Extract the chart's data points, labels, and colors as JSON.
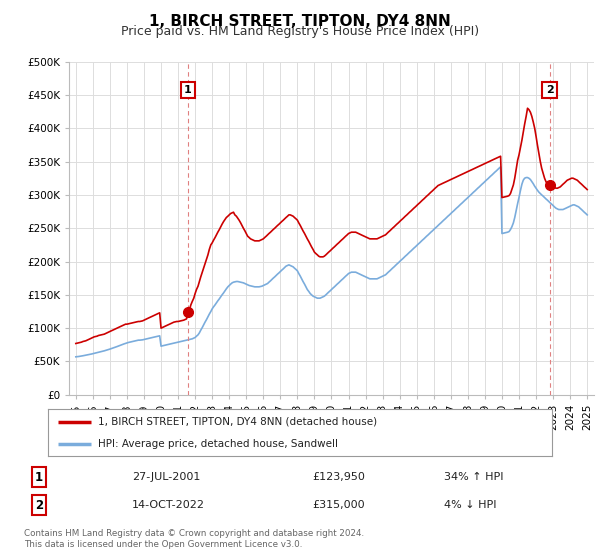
{
  "title": "1, BIRCH STREET, TIPTON, DY4 8NN",
  "subtitle": "Price paid vs. HM Land Registry's House Price Index (HPI)",
  "ylabel_ticks": [
    "£0",
    "£50K",
    "£100K",
    "£150K",
    "£200K",
    "£250K",
    "£300K",
    "£350K",
    "£400K",
    "£450K",
    "£500K"
  ],
  "ytick_values": [
    0,
    50000,
    100000,
    150000,
    200000,
    250000,
    300000,
    350000,
    400000,
    450000,
    500000
  ],
  "ylim": [
    0,
    500000
  ],
  "xlim_start": 1994.6,
  "xlim_end": 2025.4,
  "sale1_x": 2001.57,
  "sale1_y": 123950,
  "sale1_label": "1",
  "sale2_x": 2022.79,
  "sale2_y": 315000,
  "sale2_label": "2",
  "red_color": "#cc0000",
  "blue_color": "#7aacdc",
  "dashed_color": "#e08080",
  "marker_box_color": "#cc0000",
  "legend_line1": "1, BIRCH STREET, TIPTON, DY4 8NN (detached house)",
  "legend_line2": "HPI: Average price, detached house, Sandwell",
  "table_row1": [
    "1",
    "27-JUL-2001",
    "£123,950",
    "34% ↑ HPI"
  ],
  "table_row2": [
    "2",
    "14-OCT-2022",
    "£315,000",
    "4% ↓ HPI"
  ],
  "footer": "Contains HM Land Registry data © Crown copyright and database right 2024.\nThis data is licensed under the Open Government Licence v3.0.",
  "background_color": "#ffffff",
  "grid_color": "#dddddd",
  "title_fontsize": 11,
  "subtitle_fontsize": 9,
  "tick_fontsize": 7.5,
  "hpi_red_data_x": [
    1995.0,
    1995.08,
    1995.17,
    1995.25,
    1995.33,
    1995.42,
    1995.5,
    1995.58,
    1995.67,
    1995.75,
    1995.83,
    1995.92,
    1996.0,
    1996.08,
    1996.17,
    1996.25,
    1996.33,
    1996.42,
    1996.5,
    1996.58,
    1996.67,
    1996.75,
    1996.83,
    1996.92,
    1997.0,
    1997.08,
    1997.17,
    1997.25,
    1997.33,
    1997.42,
    1997.5,
    1997.58,
    1997.67,
    1997.75,
    1997.83,
    1997.92,
    1998.0,
    1998.08,
    1998.17,
    1998.25,
    1998.33,
    1998.42,
    1998.5,
    1998.58,
    1998.67,
    1998.75,
    1998.83,
    1998.92,
    1999.0,
    1999.08,
    1999.17,
    1999.25,
    1999.33,
    1999.42,
    1999.5,
    1999.58,
    1999.67,
    1999.75,
    1999.83,
    1999.92,
    2000.0,
    2000.08,
    2000.17,
    2000.25,
    2000.33,
    2000.42,
    2000.5,
    2000.58,
    2000.67,
    2000.75,
    2000.83,
    2000.92,
    2001.0,
    2001.08,
    2001.17,
    2001.25,
    2001.33,
    2001.42,
    2001.5,
    2001.57,
    2001.67,
    2001.75,
    2001.83,
    2001.92,
    2002.0,
    2002.08,
    2002.17,
    2002.25,
    2002.33,
    2002.42,
    2002.5,
    2002.58,
    2002.67,
    2002.75,
    2002.83,
    2002.92,
    2003.0,
    2003.08,
    2003.17,
    2003.25,
    2003.33,
    2003.42,
    2003.5,
    2003.58,
    2003.67,
    2003.75,
    2003.83,
    2003.92,
    2004.0,
    2004.08,
    2004.17,
    2004.25,
    2004.33,
    2004.42,
    2004.5,
    2004.58,
    2004.67,
    2004.75,
    2004.83,
    2004.92,
    2005.0,
    2005.08,
    2005.17,
    2005.25,
    2005.33,
    2005.42,
    2005.5,
    2005.58,
    2005.67,
    2005.75,
    2005.83,
    2005.92,
    2006.0,
    2006.08,
    2006.17,
    2006.25,
    2006.33,
    2006.42,
    2006.5,
    2006.58,
    2006.67,
    2006.75,
    2006.83,
    2006.92,
    2007.0,
    2007.08,
    2007.17,
    2007.25,
    2007.33,
    2007.42,
    2007.5,
    2007.58,
    2007.67,
    2007.75,
    2007.83,
    2007.92,
    2008.0,
    2008.08,
    2008.17,
    2008.25,
    2008.33,
    2008.42,
    2008.5,
    2008.58,
    2008.67,
    2008.75,
    2008.83,
    2008.92,
    2009.0,
    2009.08,
    2009.17,
    2009.25,
    2009.33,
    2009.42,
    2009.5,
    2009.58,
    2009.67,
    2009.75,
    2009.83,
    2009.92,
    2010.0,
    2010.08,
    2010.17,
    2010.25,
    2010.33,
    2010.42,
    2010.5,
    2010.58,
    2010.67,
    2010.75,
    2010.83,
    2010.92,
    2011.0,
    2011.08,
    2011.17,
    2011.25,
    2011.33,
    2011.42,
    2011.5,
    2011.58,
    2011.67,
    2011.75,
    2011.83,
    2011.92,
    2012.0,
    2012.08,
    2012.17,
    2012.25,
    2012.33,
    2012.42,
    2012.5,
    2012.58,
    2012.67,
    2012.75,
    2012.83,
    2012.92,
    2013.0,
    2013.08,
    2013.17,
    2013.25,
    2013.33,
    2013.42,
    2013.5,
    2013.58,
    2013.67,
    2013.75,
    2013.83,
    2013.92,
    2014.0,
    2014.08,
    2014.17,
    2014.25,
    2014.33,
    2014.42,
    2014.5,
    2014.58,
    2014.67,
    2014.75,
    2014.83,
    2014.92,
    2015.0,
    2015.08,
    2015.17,
    2015.25,
    2015.33,
    2015.42,
    2015.5,
    2015.58,
    2015.67,
    2015.75,
    2015.83,
    2015.92,
    2016.0,
    2016.08,
    2016.17,
    2016.25,
    2016.33,
    2016.42,
    2016.5,
    2016.58,
    2016.67,
    2016.75,
    2016.83,
    2016.92,
    2017.0,
    2017.08,
    2017.17,
    2017.25,
    2017.33,
    2017.42,
    2017.5,
    2017.58,
    2017.67,
    2017.75,
    2017.83,
    2017.92,
    2018.0,
    2018.08,
    2018.17,
    2018.25,
    2018.33,
    2018.42,
    2018.5,
    2018.58,
    2018.67,
    2018.75,
    2018.83,
    2018.92,
    2019.0,
    2019.08,
    2019.17,
    2019.25,
    2019.33,
    2019.42,
    2019.5,
    2019.58,
    2019.67,
    2019.75,
    2019.83,
    2019.92,
    2020.0,
    2020.08,
    2020.17,
    2020.25,
    2020.33,
    2020.42,
    2020.5,
    2020.58,
    2020.67,
    2020.75,
    2020.83,
    2020.92,
    2021.0,
    2021.08,
    2021.17,
    2021.25,
    2021.33,
    2021.42,
    2021.5,
    2021.58,
    2021.67,
    2021.75,
    2021.83,
    2021.92,
    2022.0,
    2022.08,
    2022.17,
    2022.25,
    2022.33,
    2022.42,
    2022.5,
    2022.58,
    2022.67,
    2022.79,
    2022.83,
    2022.92,
    2023.0,
    2023.08,
    2023.17,
    2023.25,
    2023.33,
    2023.42,
    2023.5,
    2023.58,
    2023.67,
    2023.75,
    2023.83,
    2023.92,
    2024.0,
    2024.08,
    2024.17,
    2024.25,
    2024.33,
    2024.42,
    2024.5,
    2024.58,
    2024.67,
    2024.75,
    2024.83,
    2024.92,
    2025.0
  ],
  "hpi_red_data_y": [
    77000,
    77500,
    78000,
    78500,
    79000,
    80000,
    80500,
    81000,
    82000,
    83000,
    84000,
    85000,
    86000,
    87000,
    87500,
    88000,
    89000,
    89500,
    90000,
    90500,
    91000,
    92000,
    93000,
    94000,
    95000,
    96000,
    97000,
    98000,
    99000,
    100000,
    101000,
    102000,
    103000,
    104000,
    105000,
    106000,
    106000,
    106500,
    107000,
    107500,
    108000,
    108500,
    109000,
    109500,
    110000,
    110000,
    110500,
    111000,
    112000,
    113000,
    114000,
    115000,
    116000,
    117000,
    118000,
    119000,
    120000,
    121000,
    122000,
    123000,
    100000,
    101000,
    102000,
    103000,
    104000,
    105000,
    106000,
    107000,
    108000,
    109000,
    109500,
    110000,
    110000,
    110500,
    111000,
    111500,
    112000,
    113000,
    114000,
    123950,
    128000,
    135000,
    140000,
    145000,
    152000,
    158000,
    163000,
    170000,
    177000,
    184000,
    190000,
    196000,
    203000,
    210000,
    218000,
    225000,
    228000,
    232000,
    236000,
    240000,
    244000,
    248000,
    252000,
    256000,
    260000,
    263000,
    266000,
    268000,
    270000,
    272000,
    273000,
    274000,
    270000,
    268000,
    265000,
    262000,
    258000,
    254000,
    250000,
    246000,
    242000,
    238000,
    236000,
    234000,
    233000,
    232000,
    231000,
    231000,
    231000,
    231000,
    232000,
    233000,
    234000,
    236000,
    238000,
    240000,
    242000,
    244000,
    246000,
    248000,
    250000,
    252000,
    254000,
    256000,
    258000,
    260000,
    262000,
    264000,
    266000,
    268000,
    270000,
    270000,
    269000,
    268000,
    266000,
    264000,
    262000,
    258000,
    254000,
    250000,
    246000,
    242000,
    238000,
    234000,
    230000,
    226000,
    222000,
    218000,
    214000,
    212000,
    210000,
    208000,
    207000,
    207000,
    207000,
    208000,
    210000,
    212000,
    214000,
    216000,
    218000,
    220000,
    222000,
    224000,
    226000,
    228000,
    230000,
    232000,
    234000,
    236000,
    238000,
    240000,
    242000,
    243000,
    244000,
    244000,
    244000,
    244000,
    243000,
    242000,
    241000,
    240000,
    239000,
    238000,
    237000,
    236000,
    235000,
    234000,
    234000,
    234000,
    234000,
    234000,
    234000,
    235000,
    236000,
    237000,
    238000,
    239000,
    240000,
    242000,
    244000,
    246000,
    248000,
    250000,
    252000,
    254000,
    256000,
    258000,
    260000,
    262000,
    264000,
    266000,
    268000,
    270000,
    272000,
    274000,
    276000,
    278000,
    280000,
    282000,
    284000,
    286000,
    288000,
    290000,
    292000,
    294000,
    296000,
    298000,
    300000,
    302000,
    304000,
    306000,
    308000,
    310000,
    312000,
    314000,
    315000,
    316000,
    317000,
    318000,
    319000,
    320000,
    321000,
    322000,
    323000,
    324000,
    325000,
    326000,
    327000,
    328000,
    329000,
    330000,
    331000,
    332000,
    333000,
    334000,
    335000,
    336000,
    337000,
    338000,
    339000,
    340000,
    341000,
    342000,
    343000,
    344000,
    345000,
    346000,
    347000,
    348000,
    349000,
    350000,
    351000,
    352000,
    353000,
    354000,
    355000,
    356000,
    357000,
    358000,
    296000,
    296500,
    297000,
    297500,
    298000,
    299000,
    302000,
    308000,
    315000,
    325000,
    338000,
    352000,
    360000,
    370000,
    382000,
    394000,
    406000,
    418000,
    430000,
    428000,
    424000,
    418000,
    410000,
    400000,
    388000,
    375000,
    362000,
    350000,
    340000,
    332000,
    325000,
    320000,
    316000,
    315000,
    314000,
    313000,
    312000,
    311000,
    310000,
    310000,
    311000,
    312000,
    314000,
    316000,
    318000,
    320000,
    322000,
    323000,
    324000,
    325000,
    325000,
    324000,
    323000,
    322000,
    320000,
    318000,
    316000,
    314000,
    312000,
    310000,
    308000
  ],
  "hpi_blue_data_x": [
    1995.0,
    1995.08,
    1995.17,
    1995.25,
    1995.33,
    1995.42,
    1995.5,
    1995.58,
    1995.67,
    1995.75,
    1995.83,
    1995.92,
    1996.0,
    1996.08,
    1996.17,
    1996.25,
    1996.33,
    1996.42,
    1996.5,
    1996.58,
    1996.67,
    1996.75,
    1996.83,
    1996.92,
    1997.0,
    1997.08,
    1997.17,
    1997.25,
    1997.33,
    1997.42,
    1997.5,
    1997.58,
    1997.67,
    1997.75,
    1997.83,
    1997.92,
    1998.0,
    1998.08,
    1998.17,
    1998.25,
    1998.33,
    1998.42,
    1998.5,
    1998.58,
    1998.67,
    1998.75,
    1998.83,
    1998.92,
    1999.0,
    1999.08,
    1999.17,
    1999.25,
    1999.33,
    1999.42,
    1999.5,
    1999.58,
    1999.67,
    1999.75,
    1999.83,
    1999.92,
    2000.0,
    2000.08,
    2000.17,
    2000.25,
    2000.33,
    2000.42,
    2000.5,
    2000.58,
    2000.67,
    2000.75,
    2000.83,
    2000.92,
    2001.0,
    2001.08,
    2001.17,
    2001.25,
    2001.33,
    2001.42,
    2001.5,
    2001.58,
    2001.67,
    2001.75,
    2001.83,
    2001.92,
    2002.0,
    2002.08,
    2002.17,
    2002.25,
    2002.33,
    2002.42,
    2002.5,
    2002.58,
    2002.67,
    2002.75,
    2002.83,
    2002.92,
    2003.0,
    2003.08,
    2003.17,
    2003.25,
    2003.33,
    2003.42,
    2003.5,
    2003.58,
    2003.67,
    2003.75,
    2003.83,
    2003.92,
    2004.0,
    2004.08,
    2004.17,
    2004.25,
    2004.33,
    2004.42,
    2004.5,
    2004.58,
    2004.67,
    2004.75,
    2004.83,
    2004.92,
    2005.0,
    2005.08,
    2005.17,
    2005.25,
    2005.33,
    2005.42,
    2005.5,
    2005.58,
    2005.67,
    2005.75,
    2005.83,
    2005.92,
    2006.0,
    2006.08,
    2006.17,
    2006.25,
    2006.33,
    2006.42,
    2006.5,
    2006.58,
    2006.67,
    2006.75,
    2006.83,
    2006.92,
    2007.0,
    2007.08,
    2007.17,
    2007.25,
    2007.33,
    2007.42,
    2007.5,
    2007.58,
    2007.67,
    2007.75,
    2007.83,
    2007.92,
    2008.0,
    2008.08,
    2008.17,
    2008.25,
    2008.33,
    2008.42,
    2008.5,
    2008.58,
    2008.67,
    2008.75,
    2008.83,
    2008.92,
    2009.0,
    2009.08,
    2009.17,
    2009.25,
    2009.33,
    2009.42,
    2009.5,
    2009.58,
    2009.67,
    2009.75,
    2009.83,
    2009.92,
    2010.0,
    2010.08,
    2010.17,
    2010.25,
    2010.33,
    2010.42,
    2010.5,
    2010.58,
    2010.67,
    2010.75,
    2010.83,
    2010.92,
    2011.0,
    2011.08,
    2011.17,
    2011.25,
    2011.33,
    2011.42,
    2011.5,
    2011.58,
    2011.67,
    2011.75,
    2011.83,
    2011.92,
    2012.0,
    2012.08,
    2012.17,
    2012.25,
    2012.33,
    2012.42,
    2012.5,
    2012.58,
    2012.67,
    2012.75,
    2012.83,
    2012.92,
    2013.0,
    2013.08,
    2013.17,
    2013.25,
    2013.33,
    2013.42,
    2013.5,
    2013.58,
    2013.67,
    2013.75,
    2013.83,
    2013.92,
    2014.0,
    2014.08,
    2014.17,
    2014.25,
    2014.33,
    2014.42,
    2014.5,
    2014.58,
    2014.67,
    2014.75,
    2014.83,
    2014.92,
    2015.0,
    2015.08,
    2015.17,
    2015.25,
    2015.33,
    2015.42,
    2015.5,
    2015.58,
    2015.67,
    2015.75,
    2015.83,
    2015.92,
    2016.0,
    2016.08,
    2016.17,
    2016.25,
    2016.33,
    2016.42,
    2016.5,
    2016.58,
    2016.67,
    2016.75,
    2016.83,
    2016.92,
    2017.0,
    2017.08,
    2017.17,
    2017.25,
    2017.33,
    2017.42,
    2017.5,
    2017.58,
    2017.67,
    2017.75,
    2017.83,
    2017.92,
    2018.0,
    2018.08,
    2018.17,
    2018.25,
    2018.33,
    2018.42,
    2018.5,
    2018.58,
    2018.67,
    2018.75,
    2018.83,
    2018.92,
    2019.0,
    2019.08,
    2019.17,
    2019.25,
    2019.33,
    2019.42,
    2019.5,
    2019.58,
    2019.67,
    2019.75,
    2019.83,
    2019.92,
    2020.0,
    2020.08,
    2020.17,
    2020.25,
    2020.33,
    2020.42,
    2020.5,
    2020.58,
    2020.67,
    2020.75,
    2020.83,
    2020.92,
    2021.0,
    2021.08,
    2021.17,
    2021.25,
    2021.33,
    2021.42,
    2021.5,
    2021.58,
    2021.67,
    2021.75,
    2021.83,
    2021.92,
    2022.0,
    2022.08,
    2022.17,
    2022.25,
    2022.33,
    2022.42,
    2022.5,
    2022.58,
    2022.67,
    2022.75,
    2022.83,
    2022.92,
    2023.0,
    2023.08,
    2023.17,
    2023.25,
    2023.33,
    2023.42,
    2023.5,
    2023.58,
    2023.67,
    2023.75,
    2023.83,
    2023.92,
    2024.0,
    2024.08,
    2024.17,
    2024.25,
    2024.33,
    2024.42,
    2024.5,
    2024.58,
    2024.67,
    2024.75,
    2024.83,
    2024.92,
    2025.0
  ],
  "hpi_blue_data_y": [
    57000,
    57200,
    57500,
    57800,
    58200,
    58600,
    59000,
    59400,
    59800,
    60200,
    60700,
    61200,
    61700,
    62200,
    62700,
    63200,
    63700,
    64200,
    64800,
    65400,
    66000,
    66600,
    67200,
    67900,
    68600,
    69300,
    70000,
    70800,
    71600,
    72400,
    73200,
    74000,
    74800,
    75600,
    76400,
    77200,
    78000,
    78500,
    79000,
    79500,
    80000,
    80500,
    81000,
    81500,
    82000,
    82000,
    82200,
    82500,
    83000,
    83500,
    84000,
    84500,
    85000,
    85500,
    86000,
    86500,
    87000,
    87500,
    88000,
    88500,
    73000,
    73500,
    74000,
    74500,
    75000,
    75500,
    76000,
    76500,
    77000,
    77500,
    78000,
    78500,
    79000,
    79500,
    80000,
    80500,
    81000,
    81500,
    82000,
    82500,
    83000,
    83500,
    84000,
    85000,
    86000,
    88000,
    90000,
    93000,
    97000,
    101000,
    105000,
    109000,
    113000,
    117000,
    121000,
    125000,
    129000,
    132000,
    135000,
    138000,
    141000,
    144000,
    147000,
    150000,
    153000,
    156000,
    159000,
    162000,
    164000,
    166000,
    168000,
    169000,
    169500,
    170000,
    170000,
    169500,
    169000,
    168500,
    168000,
    167000,
    166000,
    165000,
    164000,
    163500,
    163000,
    162500,
    162000,
    162000,
    162000,
    162000,
    162500,
    163000,
    164000,
    165000,
    166000,
    167000,
    169000,
    171000,
    173000,
    175000,
    177000,
    179000,
    181000,
    183000,
    185000,
    187000,
    189000,
    191000,
    193000,
    194000,
    195000,
    194000,
    193000,
    192000,
    190000,
    188000,
    186000,
    182000,
    178000,
    174000,
    170000,
    166000,
    162000,
    158000,
    155000,
    152000,
    150000,
    148000,
    147000,
    146000,
    145000,
    145000,
    145000,
    146000,
    147000,
    148000,
    150000,
    152000,
    154000,
    156000,
    158000,
    160000,
    162000,
    164000,
    166000,
    168000,
    170000,
    172000,
    174000,
    176000,
    178000,
    180000,
    182000,
    183000,
    184000,
    184000,
    184000,
    184000,
    183000,
    182000,
    181000,
    180000,
    179000,
    178000,
    177000,
    176000,
    175000,
    174000,
    174000,
    174000,
    174000,
    174000,
    174000,
    175000,
    176000,
    177000,
    178000,
    179000,
    180000,
    182000,
    184000,
    186000,
    188000,
    190000,
    192000,
    194000,
    196000,
    198000,
    200000,
    202000,
    204000,
    206000,
    208000,
    210000,
    212000,
    214000,
    216000,
    218000,
    220000,
    222000,
    224000,
    226000,
    228000,
    230000,
    232000,
    234000,
    236000,
    238000,
    240000,
    242000,
    244000,
    246000,
    248000,
    250000,
    252000,
    254000,
    256000,
    258000,
    260000,
    262000,
    264000,
    266000,
    268000,
    270000,
    272000,
    274000,
    276000,
    278000,
    280000,
    282000,
    284000,
    286000,
    288000,
    290000,
    292000,
    294000,
    296000,
    298000,
    300000,
    302000,
    304000,
    306000,
    308000,
    310000,
    312000,
    314000,
    316000,
    318000,
    320000,
    322000,
    324000,
    326000,
    328000,
    330000,
    332000,
    334000,
    336000,
    338000,
    340000,
    342000,
    242000,
    242500,
    243000,
    243500,
    244000,
    245000,
    248000,
    252000,
    258000,
    266000,
    276000,
    287000,
    296000,
    306000,
    316000,
    322000,
    325000,
    326000,
    326000,
    325000,
    323000,
    320000,
    317000,
    313000,
    310000,
    307000,
    304000,
    302000,
    300000,
    298000,
    296000,
    294000,
    292000,
    290000,
    288000,
    286000,
    284000,
    282000,
    280000,
    279000,
    278000,
    278000,
    278000,
    278000,
    279000,
    280000,
    281000,
    282000,
    283000,
    284000,
    285000,
    285000,
    284000,
    283000,
    282000,
    280000,
    278000,
    276000,
    274000,
    272000,
    270000
  ]
}
